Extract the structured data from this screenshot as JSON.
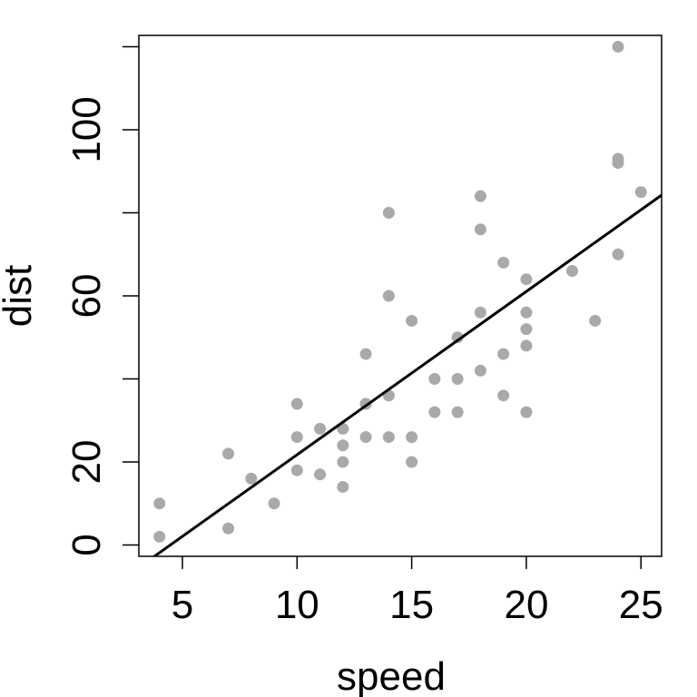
{
  "chart_data": {
    "type": "scatter",
    "xlabel": "speed",
    "ylabel": "dist",
    "xlim": [
      3.1,
      25.9
    ],
    "ylim": [
      -2.72,
      122.72
    ],
    "x_ticks": [
      5,
      10,
      15,
      20,
      25
    ],
    "y_ticks": [
      0,
      20,
      40,
      60,
      80,
      100,
      120
    ],
    "y_tick_labels": [
      "0",
      "20",
      "",
      "60",
      "",
      "100",
      ""
    ],
    "grid": false,
    "legend": "none",
    "point_color": "#a9a9a9",
    "line_color": "#000000",
    "points": [
      {
        "x": 4,
        "y": 2
      },
      {
        "x": 4,
        "y": 10
      },
      {
        "x": 7,
        "y": 4
      },
      {
        "x": 7,
        "y": 22
      },
      {
        "x": 8,
        "y": 16
      },
      {
        "x": 9,
        "y": 10
      },
      {
        "x": 10,
        "y": 18
      },
      {
        "x": 10,
        "y": 26
      },
      {
        "x": 10,
        "y": 34
      },
      {
        "x": 11,
        "y": 17
      },
      {
        "x": 11,
        "y": 28
      },
      {
        "x": 12,
        "y": 14
      },
      {
        "x": 12,
        "y": 20
      },
      {
        "x": 12,
        "y": 24
      },
      {
        "x": 12,
        "y": 28
      },
      {
        "x": 13,
        "y": 26
      },
      {
        "x": 13,
        "y": 34
      },
      {
        "x": 13,
        "y": 34
      },
      {
        "x": 13,
        "y": 46
      },
      {
        "x": 14,
        "y": 26
      },
      {
        "x": 14,
        "y": 36
      },
      {
        "x": 14,
        "y": 60
      },
      {
        "x": 14,
        "y": 80
      },
      {
        "x": 15,
        "y": 20
      },
      {
        "x": 15,
        "y": 26
      },
      {
        "x": 15,
        "y": 54
      },
      {
        "x": 16,
        "y": 32
      },
      {
        "x": 16,
        "y": 40
      },
      {
        "x": 17,
        "y": 32
      },
      {
        "x": 17,
        "y": 40
      },
      {
        "x": 17,
        "y": 50
      },
      {
        "x": 18,
        "y": 42
      },
      {
        "x": 18,
        "y": 56
      },
      {
        "x": 18,
        "y": 76
      },
      {
        "x": 18,
        "y": 84
      },
      {
        "x": 19,
        "y": 36
      },
      {
        "x": 19,
        "y": 46
      },
      {
        "x": 19,
        "y": 68
      },
      {
        "x": 20,
        "y": 32
      },
      {
        "x": 20,
        "y": 48
      },
      {
        "x": 20,
        "y": 52
      },
      {
        "x": 20,
        "y": 56
      },
      {
        "x": 20,
        "y": 64
      },
      {
        "x": 22,
        "y": 66
      },
      {
        "x": 23,
        "y": 54
      },
      {
        "x": 24,
        "y": 70
      },
      {
        "x": 24,
        "y": 92
      },
      {
        "x": 24,
        "y": 93
      },
      {
        "x": 24,
        "y": 120
      },
      {
        "x": 25,
        "y": 85
      }
    ],
    "fit_line": {
      "intercept": -17.579,
      "slope": 3.932
    }
  }
}
